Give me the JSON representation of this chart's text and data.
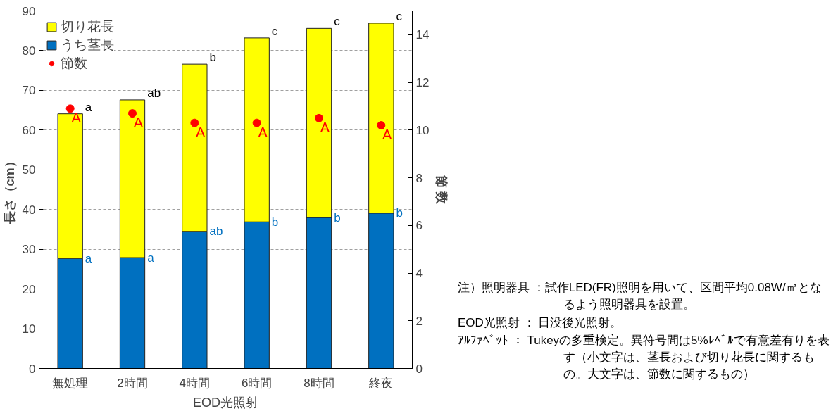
{
  "chart_data": {
    "type": "bar",
    "stacked": true,
    "categories": [
      "無処理",
      "2時間",
      "4時間",
      "6時間",
      "8時間",
      "終夜"
    ],
    "xlabel": "EOD光照射",
    "ylabel": "長さ（cm）",
    "y2label": "節 数",
    "ylim": [
      0,
      90
    ],
    "yticks": [
      0,
      10,
      20,
      30,
      40,
      50,
      60,
      70,
      80,
      90
    ],
    "y2lim": [
      0,
      15
    ],
    "y2ticks": [
      0,
      2,
      4,
      6,
      8,
      10,
      12,
      14
    ],
    "grid": "y",
    "legend": "top left",
    "series": [
      {
        "name": "うち茎長",
        "color": "#0070c0",
        "values": [
          27.7,
          27.9,
          34.5,
          36.9,
          38.0,
          39.1
        ],
        "value_labels": [
          "a",
          "a",
          "ab",
          "b",
          "b",
          "b"
        ]
      },
      {
        "name": "切り花長",
        "color": "#ffff00",
        "values": [
          36.4,
          39.7,
          42.1,
          46.3,
          47.6,
          47.8
        ],
        "value_labels": [
          "a",
          "ab",
          "b",
          "c",
          "c",
          "c"
        ]
      },
      {
        "name": "節数",
        "type": "scatter",
        "axis": "y2",
        "marker": "circle",
        "color": "#ff0000",
        "values": [
          10.9,
          10.7,
          10.3,
          10.3,
          10.5,
          10.2
        ],
        "value_labels": [
          "A",
          "A",
          "A",
          "A",
          "A",
          "A"
        ]
      }
    ],
    "annotations": [
      "注）照明器具 ：試作LED(FR)照明を用いて、区間平均0.08W/㎡となるよう照明器具を設置。",
      "EOD光照射 ： 日没後光照射。",
      "ｱﾙﾌｧﾍﾞｯﾄ ： Tukeyの多重検定。異符号間は5%ﾚﾍﾞﾙで有意差有りを表す（小文字は、茎長および切り花長に関するもの。大文字は、節数に関するもの）"
    ]
  }
}
